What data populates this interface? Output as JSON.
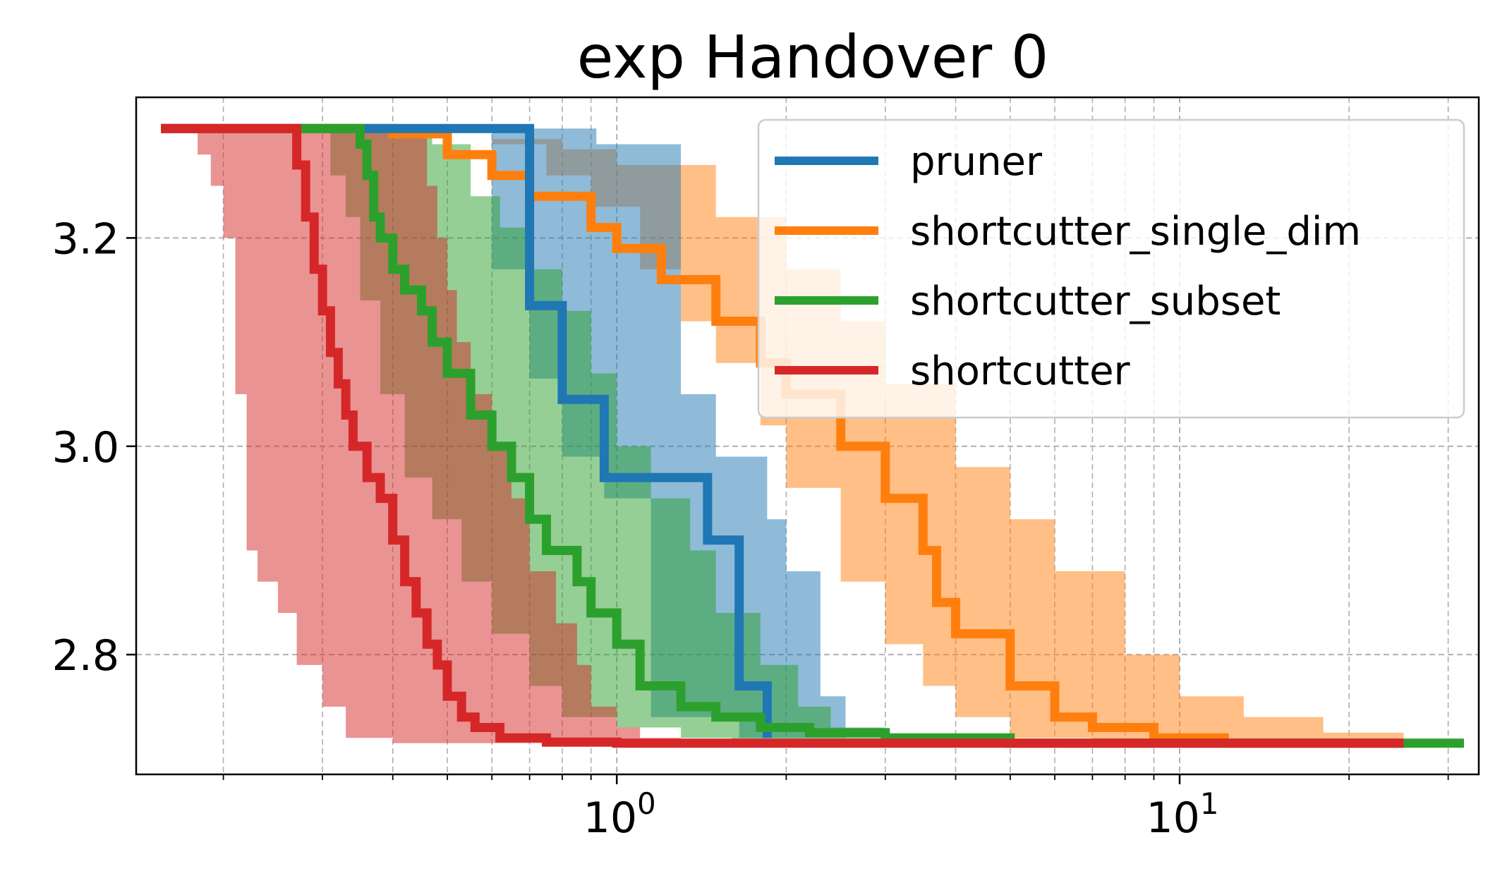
{
  "chart_data": {
    "type": "line",
    "title": "exp Handover 0",
    "xlabel": "",
    "ylabel": "",
    "xscale": "log",
    "xlim": [
      0.14,
      34
    ],
    "ylim": [
      2.685,
      3.335
    ],
    "grid": true,
    "legend_position": "top-right",
    "x_ticks": [
      1,
      10
    ],
    "x_tick_labels": [
      {
        "base": "10",
        "exp": "0"
      },
      {
        "base": "10",
        "exp": "1"
      }
    ],
    "y_ticks": [
      2.8,
      3.0,
      3.2
    ],
    "y_tick_labels": [
      "2.8",
      "3.0",
      "3.2"
    ],
    "series": [
      {
        "name": "pruner",
        "color": "#1f77b4",
        "line": [
          [
            0.155,
            3.305
          ],
          [
            0.7,
            3.305
          ],
          [
            0.7,
            3.135
          ],
          [
            0.8,
            3.135
          ],
          [
            0.8,
            3.045
          ],
          [
            0.95,
            3.045
          ],
          [
            0.95,
            2.97
          ],
          [
            1.45,
            2.97
          ],
          [
            1.45,
            2.91
          ],
          [
            1.65,
            2.91
          ],
          [
            1.65,
            2.77
          ],
          [
            1.85,
            2.77
          ],
          [
            1.85,
            2.72
          ]
        ],
        "band_upper": [
          [
            0.155,
            3.305
          ],
          [
            0.92,
            3.305
          ],
          [
            0.92,
            3.29
          ],
          [
            1.3,
            3.29
          ],
          [
            1.3,
            3.05
          ],
          [
            1.5,
            3.05
          ],
          [
            1.5,
            2.99
          ],
          [
            1.85,
            2.99
          ],
          [
            1.85,
            2.93
          ],
          [
            2.0,
            2.93
          ],
          [
            2.0,
            2.88
          ],
          [
            2.3,
            2.88
          ],
          [
            2.3,
            2.76
          ],
          [
            2.55,
            2.76
          ],
          [
            2.55,
            2.72
          ]
        ],
        "band_lower": [
          [
            0.155,
            3.305
          ],
          [
            0.6,
            3.305
          ],
          [
            0.6,
            3.17
          ],
          [
            0.7,
            3.17
          ],
          [
            0.7,
            3.065
          ],
          [
            0.8,
            3.065
          ],
          [
            0.8,
            2.99
          ],
          [
            0.95,
            2.99
          ],
          [
            0.95,
            2.95
          ],
          [
            1.15,
            2.95
          ],
          [
            1.15,
            2.74
          ],
          [
            1.65,
            2.74
          ],
          [
            1.65,
            2.72
          ],
          [
            2.55,
            2.72
          ]
        ]
      },
      {
        "name": "shortcutter_single_dim",
        "color": "#ff7f0e",
        "line": [
          [
            0.155,
            3.305
          ],
          [
            0.35,
            3.305
          ],
          [
            0.4,
            3.3
          ],
          [
            0.5,
            3.28
          ],
          [
            0.6,
            3.26
          ],
          [
            0.7,
            3.24
          ],
          [
            0.9,
            3.21
          ],
          [
            1.0,
            3.19
          ],
          [
            1.2,
            3.16
          ],
          [
            1.5,
            3.12
          ],
          [
            1.8,
            3.08
          ],
          [
            2.0,
            3.05
          ],
          [
            2.5,
            3.0
          ],
          [
            3.0,
            2.95
          ],
          [
            3.5,
            2.9
          ],
          [
            3.7,
            2.85
          ],
          [
            4.0,
            2.82
          ],
          [
            5.0,
            2.77
          ],
          [
            6.0,
            2.74
          ],
          [
            7.0,
            2.73
          ],
          [
            9.0,
            2.72
          ],
          [
            12.0,
            2.715
          ],
          [
            25.0,
            2.715
          ]
        ],
        "band_upper": [
          [
            0.155,
            3.305
          ],
          [
            0.4,
            3.305
          ],
          [
            0.6,
            3.295
          ],
          [
            0.8,
            3.285
          ],
          [
            1.0,
            3.27
          ],
          [
            1.5,
            3.22
          ],
          [
            2.0,
            3.17
          ],
          [
            2.5,
            3.12
          ],
          [
            3.0,
            3.06
          ],
          [
            4.0,
            2.98
          ],
          [
            5.0,
            2.93
          ],
          [
            6.0,
            2.88
          ],
          [
            8.0,
            2.8
          ],
          [
            10.0,
            2.76
          ],
          [
            13.0,
            2.74
          ],
          [
            18.0,
            2.725
          ],
          [
            25.0,
            2.72
          ]
        ],
        "band_lower": [
          [
            0.155,
            3.305
          ],
          [
            0.6,
            3.29
          ],
          [
            0.75,
            3.26
          ],
          [
            0.9,
            3.23
          ],
          [
            1.1,
            3.17
          ],
          [
            1.3,
            3.12
          ],
          [
            1.5,
            3.08
          ],
          [
            1.8,
            3.02
          ],
          [
            2.0,
            2.96
          ],
          [
            2.5,
            2.87
          ],
          [
            3.0,
            2.81
          ],
          [
            3.5,
            2.77
          ],
          [
            4.0,
            2.74
          ],
          [
            5.0,
            2.72
          ],
          [
            7.0,
            2.715
          ],
          [
            25.0,
            2.715
          ]
        ]
      },
      {
        "name": "shortcutter_subset",
        "color": "#2ca02c",
        "line": [
          [
            0.155,
            3.305
          ],
          [
            0.33,
            3.305
          ],
          [
            0.35,
            3.29
          ],
          [
            0.36,
            3.26
          ],
          [
            0.37,
            3.22
          ],
          [
            0.38,
            3.2
          ],
          [
            0.4,
            3.17
          ],
          [
            0.42,
            3.15
          ],
          [
            0.45,
            3.13
          ],
          [
            0.47,
            3.1
          ],
          [
            0.5,
            3.07
          ],
          [
            0.55,
            3.03
          ],
          [
            0.6,
            3.0
          ],
          [
            0.65,
            2.97
          ],
          [
            0.7,
            2.93
          ],
          [
            0.75,
            2.9
          ],
          [
            0.85,
            2.87
          ],
          [
            0.9,
            2.84
          ],
          [
            1.0,
            2.81
          ],
          [
            1.1,
            2.77
          ],
          [
            1.3,
            2.75
          ],
          [
            1.5,
            2.74
          ],
          [
            1.8,
            2.73
          ],
          [
            2.2,
            2.725
          ],
          [
            3.0,
            2.72
          ],
          [
            5.0,
            2.715
          ],
          [
            32.0,
            2.715
          ]
        ],
        "band_upper": [
          [
            0.155,
            3.305
          ],
          [
            0.4,
            3.305
          ],
          [
            0.47,
            3.29
          ],
          [
            0.55,
            3.24
          ],
          [
            0.62,
            3.21
          ],
          [
            0.7,
            3.17
          ],
          [
            0.8,
            3.13
          ],
          [
            0.9,
            3.07
          ],
          [
            1.0,
            3.0
          ],
          [
            1.15,
            2.95
          ],
          [
            1.35,
            2.9
          ],
          [
            1.5,
            2.84
          ],
          [
            1.8,
            2.79
          ],
          [
            2.1,
            2.75
          ],
          [
            2.4,
            2.73
          ],
          [
            3.0,
            2.72
          ],
          [
            4.0,
            2.715
          ],
          [
            32.0,
            2.715
          ]
        ],
        "band_lower": [
          [
            0.155,
            3.305
          ],
          [
            0.3,
            3.305
          ],
          [
            0.31,
            3.26
          ],
          [
            0.33,
            3.22
          ],
          [
            0.35,
            3.14
          ],
          [
            0.38,
            3.05
          ],
          [
            0.42,
            2.97
          ],
          [
            0.47,
            2.93
          ],
          [
            0.53,
            2.87
          ],
          [
            0.6,
            2.82
          ],
          [
            0.7,
            2.77
          ],
          [
            0.8,
            2.74
          ],
          [
            1.0,
            2.73
          ],
          [
            1.3,
            2.72
          ],
          [
            1.6,
            2.715
          ],
          [
            32.0,
            2.715
          ]
        ]
      },
      {
        "name": "shortcutter",
        "color": "#d62728",
        "line": [
          [
            0.155,
            3.305
          ],
          [
            0.26,
            3.305
          ],
          [
            0.27,
            3.27
          ],
          [
            0.28,
            3.22
          ],
          [
            0.29,
            3.17
          ],
          [
            0.3,
            3.13
          ],
          [
            0.31,
            3.09
          ],
          [
            0.32,
            3.06
          ],
          [
            0.33,
            3.03
          ],
          [
            0.34,
            3.0
          ],
          [
            0.36,
            2.97
          ],
          [
            0.38,
            2.95
          ],
          [
            0.4,
            2.91
          ],
          [
            0.42,
            2.87
          ],
          [
            0.44,
            2.84
          ],
          [
            0.46,
            2.81
          ],
          [
            0.48,
            2.79
          ],
          [
            0.5,
            2.76
          ],
          [
            0.53,
            2.74
          ],
          [
            0.56,
            2.73
          ],
          [
            0.62,
            2.72
          ],
          [
            0.75,
            2.716
          ],
          [
            1.0,
            2.715
          ],
          [
            25.0,
            2.715
          ]
        ],
        "band_upper": [
          [
            0.155,
            3.305
          ],
          [
            0.45,
            3.305
          ],
          [
            0.46,
            3.25
          ],
          [
            0.48,
            3.2
          ],
          [
            0.5,
            3.15
          ],
          [
            0.52,
            3.1
          ],
          [
            0.55,
            3.05
          ],
          [
            0.6,
            3.0
          ],
          [
            0.65,
            2.95
          ],
          [
            0.7,
            2.88
          ],
          [
            0.78,
            2.83
          ],
          [
            0.85,
            2.79
          ],
          [
            0.9,
            2.75
          ],
          [
            1.0,
            2.73
          ],
          [
            1.1,
            2.72
          ],
          [
            1.3,
            2.715
          ],
          [
            25.0,
            2.715
          ]
        ],
        "band_lower": [
          [
            0.155,
            3.305
          ],
          [
            0.17,
            3.305
          ],
          [
            0.18,
            3.28
          ],
          [
            0.19,
            3.25
          ],
          [
            0.2,
            3.2
          ],
          [
            0.21,
            3.05
          ],
          [
            0.22,
            2.9
          ],
          [
            0.23,
            2.87
          ],
          [
            0.25,
            2.84
          ],
          [
            0.27,
            2.79
          ],
          [
            0.3,
            2.75
          ],
          [
            0.33,
            2.72
          ],
          [
            0.4,
            2.715
          ],
          [
            25.0,
            2.715
          ]
        ]
      }
    ]
  }
}
